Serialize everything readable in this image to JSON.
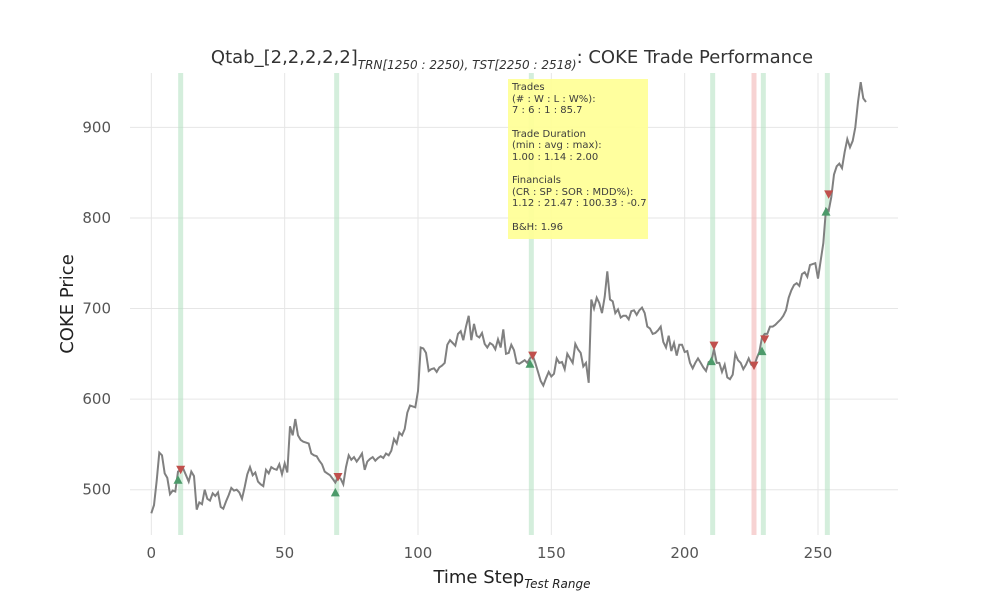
{
  "chart_data": {
    "type": "line",
    "title": {
      "prefix": "Qtab_[2,2,2,2,2]",
      "subscript": "TRN[1250 : 2250), TST[2250 : 2518)",
      "suffix": ": COKE Trade Performance"
    },
    "xlabel": {
      "main": "Time Step",
      "subscript": "Test Range"
    },
    "ylabel": "COKE Price",
    "xlim": [
      -8,
      280
    ],
    "ylim": [
      450,
      960
    ],
    "xticks": [
      0,
      50,
      100,
      150,
      200,
      250
    ],
    "yticks": [
      500,
      600,
      700,
      800,
      900
    ],
    "grid": true,
    "colors": {
      "price": "#808080",
      "win_band": "#b8e3c4",
      "loss_band": "#f2b6b6",
      "buy": "#4c9a6a",
      "sell": "#c0504d",
      "info_bg": "#ffff99",
      "grid": "#e6e6e6"
    },
    "series": [
      {
        "values": [
          [
            0,
            474
          ],
          [
            1,
            483
          ],
          [
            2,
            510
          ],
          [
            3,
            541
          ],
          [
            4,
            538
          ],
          [
            5,
            518
          ],
          [
            6,
            513
          ],
          [
            7,
            495
          ],
          [
            8,
            499
          ],
          [
            9,
            498
          ],
          [
            10,
            520
          ],
          [
            11,
            522
          ],
          [
            12,
            523
          ],
          [
            13,
            516
          ],
          [
            14,
            509
          ],
          [
            15,
            520
          ],
          [
            16,
            515
          ],
          [
            17,
            478
          ],
          [
            18,
            486
          ],
          [
            19,
            484
          ],
          [
            20,
            500
          ],
          [
            21,
            490
          ],
          [
            22,
            488
          ],
          [
            23,
            496
          ],
          [
            24,
            493
          ],
          [
            25,
            497
          ],
          [
            26,
            481
          ],
          [
            27,
            479
          ],
          [
            28,
            487
          ],
          [
            29,
            494
          ],
          [
            30,
            502
          ],
          [
            31,
            499
          ],
          [
            32,
            500
          ],
          [
            33,
            497
          ],
          [
            34,
            490
          ],
          [
            35,
            503
          ],
          [
            36,
            517
          ],
          [
            37,
            525
          ],
          [
            38,
            516
          ],
          [
            39,
            519
          ],
          [
            40,
            509
          ],
          [
            41,
            506
          ],
          [
            42,
            504
          ],
          [
            43,
            522
          ],
          [
            44,
            518
          ],
          [
            45,
            525
          ],
          [
            46,
            523
          ],
          [
            47,
            522
          ],
          [
            48,
            528
          ],
          [
            49,
            517
          ],
          [
            50,
            529
          ],
          [
            51,
            519
          ],
          [
            52,
            570
          ],
          [
            53,
            560
          ],
          [
            54,
            578
          ],
          [
            55,
            560
          ],
          [
            56,
            555
          ],
          [
            57,
            553
          ],
          [
            58,
            552
          ],
          [
            59,
            551
          ],
          [
            60,
            540
          ],
          [
            61,
            538
          ],
          [
            62,
            537
          ],
          [
            63,
            532
          ],
          [
            64,
            528
          ],
          [
            65,
            520
          ],
          [
            66,
            518
          ],
          [
            67,
            516
          ],
          [
            68,
            512
          ],
          [
            69,
            508
          ],
          [
            70,
            514
          ],
          [
            71,
            512
          ],
          [
            72,
            506
          ],
          [
            73,
            525
          ],
          [
            74,
            538
          ],
          [
            75,
            533
          ],
          [
            76,
            536
          ],
          [
            77,
            531
          ],
          [
            78,
            535
          ],
          [
            79,
            540
          ],
          [
            80,
            522
          ],
          [
            81,
            531
          ],
          [
            82,
            534
          ],
          [
            83,
            536
          ],
          [
            84,
            532
          ],
          [
            85,
            535
          ],
          [
            86,
            537
          ],
          [
            87,
            535
          ],
          [
            88,
            540
          ],
          [
            89,
            538
          ],
          [
            90,
            543
          ],
          [
            91,
            556
          ],
          [
            92,
            551
          ],
          [
            93,
            563
          ],
          [
            94,
            560
          ],
          [
            95,
            567
          ],
          [
            96,
            585
          ],
          [
            97,
            593
          ],
          [
            98,
            592
          ],
          [
            99,
            591
          ],
          [
            100,
            609
          ],
          [
            101,
            657
          ],
          [
            102,
            656
          ],
          [
            103,
            651
          ],
          [
            104,
            631
          ],
          [
            105,
            633
          ],
          [
            106,
            634
          ],
          [
            107,
            630
          ],
          [
            108,
            635
          ],
          [
            109,
            637
          ],
          [
            110,
            640
          ],
          [
            111,
            660
          ],
          [
            112,
            665
          ],
          [
            113,
            662
          ],
          [
            114,
            659
          ],
          [
            115,
            672
          ],
          [
            116,
            675
          ],
          [
            117,
            665
          ],
          [
            118,
            680
          ],
          [
            119,
            692
          ],
          [
            120,
            665
          ],
          [
            121,
            683
          ],
          [
            122,
            670
          ],
          [
            123,
            668
          ],
          [
            124,
            673
          ],
          [
            125,
            661
          ],
          [
            126,
            657
          ],
          [
            127,
            662
          ],
          [
            128,
            660
          ],
          [
            129,
            655
          ],
          [
            130,
            666
          ],
          [
            131,
            657
          ],
          [
            132,
            677
          ],
          [
            133,
            650
          ],
          [
            134,
            651
          ],
          [
            135,
            660
          ],
          [
            136,
            654
          ],
          [
            137,
            640
          ],
          [
            138,
            639
          ],
          [
            139,
            641
          ],
          [
            140,
            643
          ],
          [
            141,
            640
          ],
          [
            142,
            645
          ],
          [
            143,
            648
          ],
          [
            144,
            640
          ],
          [
            145,
            630
          ],
          [
            146,
            620
          ],
          [
            147,
            615
          ],
          [
            148,
            623
          ],
          [
            149,
            630
          ],
          [
            150,
            625
          ],
          [
            151,
            628
          ],
          [
            152,
            645
          ],
          [
            153,
            640
          ],
          [
            154,
            641
          ],
          [
            155,
            633
          ],
          [
            156,
            650
          ],
          [
            157,
            645
          ],
          [
            158,
            640
          ],
          [
            159,
            661
          ],
          [
            160,
            655
          ],
          [
            161,
            651
          ],
          [
            162,
            636
          ],
          [
            163,
            640
          ],
          [
            164,
            618
          ],
          [
            165,
            710
          ],
          [
            166,
            700
          ],
          [
            167,
            712
          ],
          [
            168,
            706
          ],
          [
            169,
            695
          ],
          [
            170,
            713
          ],
          [
            171,
            741
          ],
          [
            172,
            710
          ],
          [
            173,
            708
          ],
          [
            174,
            695
          ],
          [
            175,
            699
          ],
          [
            176,
            690
          ],
          [
            177,
            692
          ],
          [
            178,
            692
          ],
          [
            179,
            688
          ],
          [
            180,
            697
          ],
          [
            181,
            698
          ],
          [
            182,
            693
          ],
          [
            183,
            698
          ],
          [
            184,
            701
          ],
          [
            185,
            695
          ],
          [
            186,
            680
          ],
          [
            187,
            678
          ],
          [
            188,
            672
          ],
          [
            189,
            673
          ],
          [
            190,
            676
          ],
          [
            191,
            680
          ],
          [
            192,
            663
          ],
          [
            193,
            657
          ],
          [
            194,
            670
          ],
          [
            195,
            653
          ],
          [
            196,
            662
          ],
          [
            197,
            648
          ],
          [
            198,
            660
          ],
          [
            199,
            660
          ],
          [
            200,
            652
          ],
          [
            201,
            653
          ],
          [
            202,
            640
          ],
          [
            203,
            634
          ],
          [
            204,
            640
          ],
          [
            205,
            645
          ],
          [
            206,
            640
          ],
          [
            207,
            635
          ],
          [
            208,
            631
          ],
          [
            209,
            641
          ],
          [
            210,
            642
          ],
          [
            211,
            655
          ],
          [
            212,
            640
          ],
          [
            213,
            640
          ],
          [
            214,
            630
          ],
          [
            215,
            638
          ],
          [
            216,
            624
          ],
          [
            217,
            622
          ],
          [
            218,
            627
          ],
          [
            219,
            650
          ],
          [
            220,
            643
          ],
          [
            221,
            640
          ],
          [
            222,
            633
          ],
          [
            223,
            638
          ],
          [
            224,
            645
          ],
          [
            225,
            638
          ],
          [
            226,
            636
          ],
          [
            227,
            645
          ],
          [
            228,
            652
          ],
          [
            229,
            668
          ],
          [
            230,
            672
          ],
          [
            231,
            672
          ],
          [
            232,
            680
          ],
          [
            233,
            680
          ],
          [
            234,
            682
          ],
          [
            235,
            685
          ],
          [
            236,
            688
          ],
          [
            237,
            692
          ],
          [
            238,
            698
          ],
          [
            239,
            712
          ],
          [
            240,
            720
          ],
          [
            241,
            726
          ],
          [
            242,
            728
          ],
          [
            243,
            725
          ],
          [
            244,
            738
          ],
          [
            245,
            740
          ],
          [
            246,
            735
          ],
          [
            247,
            748
          ],
          [
            248,
            749
          ],
          [
            249,
            750
          ],
          [
            250,
            733
          ],
          [
            251,
            753
          ],
          [
            252,
            772
          ],
          [
            253,
            810
          ],
          [
            254,
            808
          ],
          [
            255,
            823
          ],
          [
            256,
            848
          ],
          [
            257,
            857
          ],
          [
            258,
            860
          ],
          [
            259,
            855
          ],
          [
            260,
            873
          ],
          [
            261,
            887
          ],
          [
            262,
            878
          ],
          [
            263,
            885
          ],
          [
            264,
            900
          ],
          [
            265,
            928
          ],
          [
            266,
            950
          ],
          [
            267,
            932
          ],
          [
            268,
            928
          ]
        ]
      }
    ],
    "trade_bands": [
      {
        "x": 11,
        "result": "win"
      },
      {
        "x": 69.5,
        "result": "win"
      },
      {
        "x": 142.5,
        "result": "win"
      },
      {
        "x": 210.5,
        "result": "win"
      },
      {
        "x": 226,
        "result": "loss"
      },
      {
        "x": 229.5,
        "result": "win"
      },
      {
        "x": 253.5,
        "result": "win"
      }
    ],
    "buy_markers": [
      [
        10,
        511
      ],
      [
        69,
        497
      ],
      [
        142,
        639
      ],
      [
        210,
        642
      ],
      [
        229,
        653
      ],
      [
        253,
        807
      ]
    ],
    "sell_markers": [
      [
        11,
        522
      ],
      [
        70,
        514
      ],
      [
        143,
        648
      ],
      [
        211,
        659
      ],
      [
        226,
        637
      ],
      [
        230,
        666
      ],
      [
        254,
        826
      ]
    ]
  },
  "info": {
    "trades_label": "Trades",
    "trades_sub": "(# : W : L : W%):",
    "trades_value": "7 : 6 : 1 : 85.7",
    "duration_label": "Trade Duration",
    "duration_sub": "(min : avg : max):",
    "duration_value": "1.00 : 1.14 : 2.00",
    "fin_label": "Financials",
    "fin_sub": "(CR : SP : SOR : MDD%):",
    "fin_value": "1.12 : 21.47 : 100.33 : -0.7",
    "bh": "B&H: 1.96"
  }
}
